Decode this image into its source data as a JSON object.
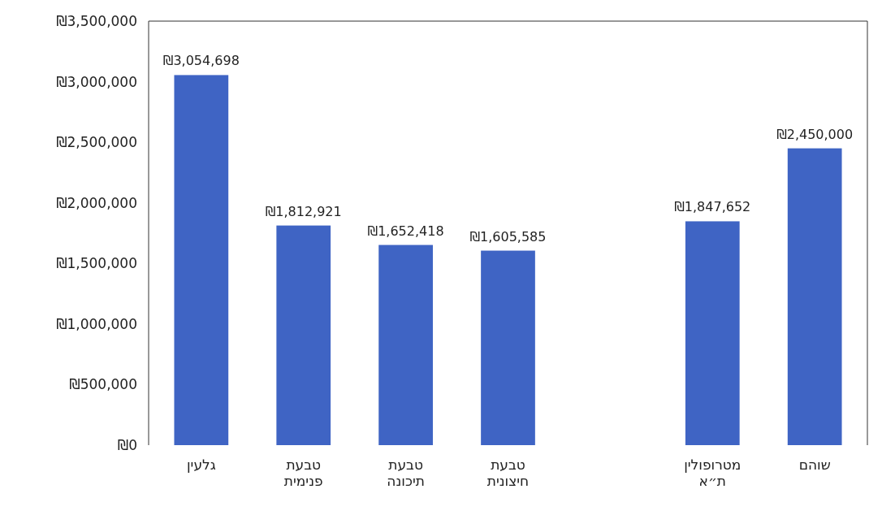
{
  "chart_data": {
    "type": "bar",
    "categories": [
      "גלעין",
      "טבעת פנימית",
      "טבעת תיכונה",
      "טבעת חיצונית",
      null,
      "מטרופולין ת״א",
      "שוהם"
    ],
    "values": [
      3054698,
      1812921,
      1652418,
      1605585,
      null,
      1847652,
      2450000
    ],
    "value_labels": [
      "₪3,054,698",
      "₪1,812,921",
      "₪1,652,418",
      "₪1,605,585",
      null,
      "₪1,847,652",
      "₪2,450,000"
    ],
    "color": "#3f64c4",
    "ylim": [
      0,
      3500000
    ],
    "yticks": [
      {
        "value": 0,
        "label": "₪0"
      },
      {
        "value": 500000,
        "label": "₪500,000"
      },
      {
        "value": 1000000,
        "label": "₪1,000,000"
      },
      {
        "value": 1500000,
        "label": "₪1,500,000"
      },
      {
        "value": 2000000,
        "label": "₪2,000,000"
      },
      {
        "value": 2500000,
        "label": "₪2,500,000"
      },
      {
        "value": 3000000,
        "label": "₪3,000,000"
      },
      {
        "value": 3500000,
        "label": "₪3,500,000"
      }
    ],
    "grid": false
  }
}
